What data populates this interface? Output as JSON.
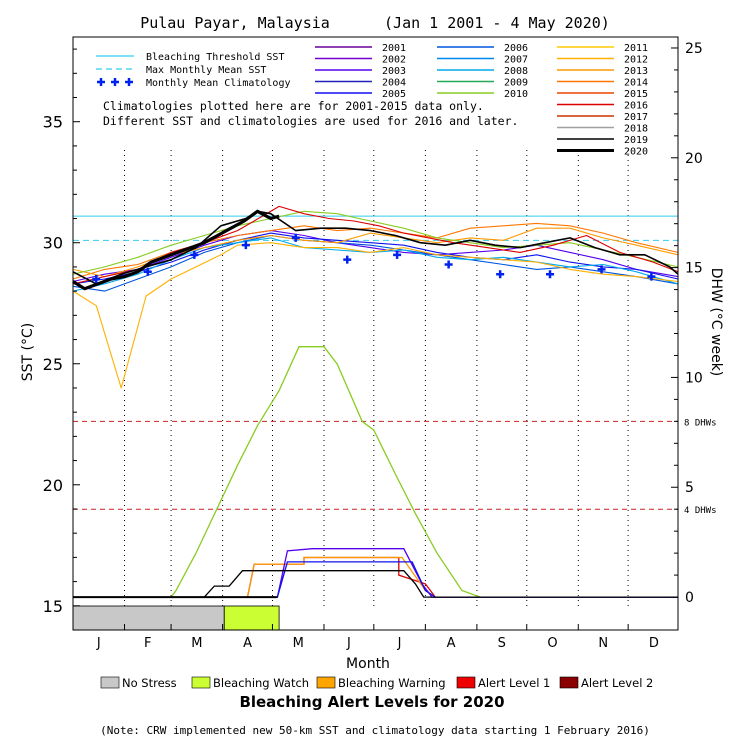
{
  "title": "Pulau Payar, Malaysia      (Jan 1 2001 - 4 May 2020)",
  "xlabel": "Month",
  "ylabel_left": "SST (°C)",
  "ylabel_right": "DHW (°C week)",
  "alert_title": "Bleaching Alert Levels for 2020",
  "note": "(Note: CRW implemented new 50-km SST and climatology data starting 1 February 2016)",
  "climatology_note": [
    "Climatologies plotted here are for 2001-2015 data only.",
    "Different SST and climatologies are used for 2016 and later."
  ],
  "colors": {
    "threshold": "#33ccee",
    "mmm": "#33ccee",
    "climatology": "#0022ee",
    "dhw_ref": "#cc2222",
    "no_stress": "#c8c8c8",
    "watch": "#ccff33",
    "warning": "#ffa500",
    "alert1": "#ee0000",
    "alert2": "#8b0000"
  },
  "legend_main": [
    {
      "label": "Bleaching Threshold SST",
      "style": "solid",
      "color": "#33ccee"
    },
    {
      "label": "Max Monthly Mean SST",
      "style": "dash",
      "color": "#33ccee"
    },
    {
      "label": "Monthly Mean Climatology",
      "style": "plus",
      "color": "#0022ee"
    }
  ],
  "legend_years": [
    {
      "year": "2001",
      "color": "#660099"
    },
    {
      "year": "2002",
      "color": "#7700cc"
    },
    {
      "year": "2003",
      "color": "#5500ee"
    },
    {
      "year": "2004",
      "color": "#2222bb"
    },
    {
      "year": "2005",
      "color": "#1111ee"
    },
    {
      "year": "2006",
      "color": "#0055dd"
    },
    {
      "year": "2007",
      "color": "#0088ee"
    },
    {
      "year": "2008",
      "color": "#00aaee"
    },
    {
      "year": "2009",
      "color": "#22aa55"
    },
    {
      "year": "2010",
      "color": "#88cc22"
    },
    {
      "year": "2011",
      "color": "#ffcc00"
    },
    {
      "year": "2012",
      "color": "#ffb000"
    },
    {
      "year": "2013",
      "color": "#ff9900"
    },
    {
      "year": "2014",
      "color": "#ff7700"
    },
    {
      "year": "2015",
      "color": "#ee4400"
    },
    {
      "year": "2016",
      "color": "#dd0000"
    },
    {
      "year": "2017",
      "color": "#cc3300"
    },
    {
      "year": "2018",
      "color": "#a0a0a0"
    },
    {
      "year": "2019",
      "color": "#000000"
    },
    {
      "year": "2020",
      "color": "#000000"
    }
  ],
  "alert_levels": [
    {
      "label": "No Stress",
      "color": "#c8c8c8"
    },
    {
      "label": "Bleaching Watch",
      "color": "#ccff33"
    },
    {
      "label": "Bleaching Warning",
      "color": "#ffa500"
    },
    {
      "label": "Alert Level 1",
      "color": "#ee0000"
    },
    {
      "label": "Alert Level 2",
      "color": "#8b0000"
    }
  ],
  "chart_data": {
    "type": "line",
    "x_unit": "day of year",
    "months": [
      "J",
      "F",
      "M",
      "A",
      "M",
      "J",
      "J",
      "A",
      "S",
      "O",
      "N",
      "D"
    ],
    "xlim": [
      1,
      365
    ],
    "ylim_left": [
      14,
      38.5
    ],
    "yticks_left": [
      15,
      20,
      25,
      30,
      35
    ],
    "ylim_right": [
      -1.5,
      25.5
    ],
    "yticks_right": [
      0,
      5,
      10,
      15,
      20,
      25
    ],
    "dhw_refs": [
      {
        "label": "4 DHWs",
        "value": 4
      },
      {
        "label": "8 DHWs",
        "value": 8
      }
    ],
    "threshold_sst": 31.1,
    "mmm_sst": 30.1,
    "climatology": {
      "x": [
        15,
        46,
        74,
        105,
        135,
        166,
        196,
        227,
        258,
        288,
        319,
        349
      ],
      "y": [
        28.5,
        28.8,
        29.5,
        29.9,
        30.2,
        29.3,
        29.5,
        29.1,
        28.7,
        28.7,
        28.9,
        28.6
      ]
    },
    "sst_series": [
      {
        "name": "2020",
        "x": [
          1,
          8,
          16,
          24,
          32,
          40,
          48,
          56,
          64,
          72,
          80,
          88,
          96,
          104,
          112,
          120,
          125
        ],
        "y": [
          28.4,
          28.1,
          28.3,
          28.5,
          28.6,
          28.8,
          29.2,
          29.4,
          29.6,
          29.8,
          30.0,
          30.3,
          30.6,
          30.9,
          31.3,
          31.0,
          31.1
        ]
      },
      {
        "name": "2019",
        "x": [
          1,
          15,
          30,
          45,
          60,
          75,
          90,
          105,
          112,
          120,
          135,
          150,
          165,
          180,
          195,
          210,
          225,
          240,
          255,
          270,
          285,
          300,
          315,
          330,
          345,
          360,
          365
        ],
        "y": [
          28.8,
          28.3,
          28.7,
          29.0,
          29.3,
          29.8,
          30.7,
          31.0,
          31.3,
          31.2,
          30.5,
          30.6,
          30.6,
          30.5,
          30.3,
          30.0,
          29.9,
          30.1,
          29.9,
          29.8,
          30.0,
          30.2,
          29.8,
          29.5,
          29.5,
          29.0,
          28.7
        ]
      },
      {
        "name": "2016",
        "x": [
          1,
          20,
          40,
          60,
          80,
          100,
          115,
          125,
          140,
          155,
          170,
          185,
          200,
          215,
          230,
          250,
          270,
          290,
          310,
          330,
          350,
          365
        ],
        "y": [
          28.3,
          28.6,
          28.9,
          29.6,
          30.0,
          30.5,
          31.1,
          31.5,
          31.2,
          31.0,
          30.9,
          30.7,
          30.4,
          30.2,
          30.0,
          29.8,
          29.6,
          29.9,
          30.3,
          29.6,
          29.2,
          28.8
        ]
      },
      {
        "name": "2010",
        "x": [
          1,
          20,
          40,
          60,
          80,
          100,
          120,
          140,
          160,
          180,
          200,
          220,
          240,
          260,
          280,
          300,
          320,
          340,
          365
        ],
        "y": [
          28.7,
          29.0,
          29.4,
          29.9,
          30.3,
          30.7,
          31.0,
          31.3,
          31.2,
          30.9,
          30.6,
          30.2,
          30.0,
          29.8,
          29.9,
          30.0,
          29.7,
          29.4,
          29.0
        ]
      },
      {
        "name": "2013",
        "x": [
          1,
          20,
          40,
          60,
          80,
          100,
          120,
          140,
          160,
          180,
          200,
          220,
          240,
          260,
          280,
          300,
          320,
          340,
          365
        ],
        "y": [
          28.9,
          28.6,
          29.0,
          29.5,
          29.8,
          30.1,
          30.3,
          30.1,
          30.0,
          30.4,
          30.2,
          30.0,
          30.2,
          30.1,
          30.6,
          30.6,
          30.2,
          29.9,
          29.5
        ]
      },
      {
        "name": "2014",
        "x": [
          1,
          20,
          40,
          60,
          80,
          100,
          120,
          140,
          160,
          180,
          200,
          220,
          240,
          260,
          280,
          300,
          320,
          340,
          365
        ],
        "y": [
          28.5,
          28.9,
          29.1,
          29.6,
          30.0,
          30.3,
          30.5,
          30.7,
          30.5,
          30.6,
          30.4,
          30.2,
          30.6,
          30.7,
          30.8,
          30.7,
          30.4,
          30.0,
          29.6
        ]
      },
      {
        "name": "2012",
        "x": [
          1,
          15,
          30,
          45,
          60,
          75,
          90,
          100,
          120,
          140,
          160,
          180,
          200,
          220,
          240,
          260,
          280,
          300,
          320,
          340,
          365
        ],
        "y": [
          28.0,
          27.4,
          24.0,
          27.8,
          28.5,
          29.0,
          29.5,
          29.9,
          30.0,
          29.8,
          29.8,
          29.6,
          29.8,
          29.5,
          29.4,
          29.3,
          29.2,
          28.9,
          28.7,
          28.6,
          28.4
        ]
      },
      {
        "name": "2008",
        "x": [
          1,
          20,
          40,
          60,
          80,
          100,
          120,
          140,
          160,
          180,
          200,
          220,
          240,
          260,
          280,
          300,
          320,
          340,
          365
        ],
        "y": [
          28.0,
          28.3,
          28.7,
          29.3,
          29.8,
          30.0,
          30.2,
          29.8,
          29.7,
          29.6,
          29.7,
          29.4,
          29.3,
          29.4,
          29.2,
          29.0,
          29.1,
          28.8,
          28.3
        ]
      },
      {
        "name": "2006",
        "x": [
          1,
          20,
          40,
          60,
          80,
          100,
          120,
          140,
          160,
          180,
          200,
          220,
          240,
          260,
          280,
          300,
          320,
          340,
          365
        ],
        "y": [
          28.2,
          28.0,
          28.5,
          29.0,
          29.6,
          30.0,
          30.3,
          30.1,
          30.0,
          29.9,
          29.7,
          29.5,
          29.3,
          29.1,
          28.9,
          29.0,
          28.8,
          28.6,
          28.3
        ]
      },
      {
        "name": "2005",
        "x": [
          1,
          20,
          40,
          60,
          80,
          100,
          120,
          140,
          160,
          180,
          200,
          220,
          240,
          260,
          280,
          300,
          320,
          340,
          365
        ],
        "y": [
          28.3,
          28.5,
          28.8,
          29.2,
          29.7,
          30.1,
          30.4,
          30.2,
          30.1,
          30.0,
          29.9,
          29.6,
          29.4,
          29.3,
          29.5,
          29.2,
          29.0,
          28.9,
          28.5
        ]
      },
      {
        "name": "2003",
        "x": [
          1,
          20,
          40,
          60,
          80,
          100,
          120,
          140,
          160,
          180,
          200,
          220,
          240,
          260,
          280,
          300,
          320,
          340,
          365
        ],
        "y": [
          28.4,
          28.7,
          28.9,
          29.4,
          29.9,
          30.3,
          30.5,
          30.3,
          30.0,
          29.8,
          29.6,
          29.5,
          29.6,
          29.7,
          29.9,
          29.6,
          29.3,
          28.9,
          28.6
        ]
      }
    ],
    "dhw_series": [
      {
        "name": "2010",
        "x": [
          1,
          60,
          63,
          75,
          85,
          100,
          112,
          125,
          137,
          152,
          160,
          175,
          182,
          195,
          207,
          220,
          235,
          246,
          365
        ],
        "y": [
          0,
          0,
          0.3,
          2.0,
          3.6,
          6.0,
          7.8,
          9.4,
          11.4,
          11.4,
          10.6,
          8.0,
          7.6,
          5.6,
          3.8,
          2.0,
          0.3,
          0,
          0
        ]
      },
      {
        "name": "2016",
        "x": [
          1,
          106,
          110,
          140,
          140,
          155,
          175,
          197,
          197,
          213,
          219,
          365
        ],
        "y": [
          0,
          0,
          1.5,
          1.5,
          1.8,
          1.8,
          1.8,
          1.8,
          1.0,
          0.6,
          0,
          0
        ]
      },
      {
        "name": "2013",
        "x": [
          1,
          106,
          110,
          140,
          140,
          155,
          175,
          199,
          199,
          213,
          219,
          365
        ],
        "y": [
          0,
          0,
          1.5,
          1.5,
          1.8,
          1.8,
          1.8,
          1.8,
          1.8,
          0.3,
          0,
          0
        ]
      },
      {
        "name": "2003",
        "x": [
          1,
          124,
          130,
          145,
          160,
          175,
          185,
          195,
          200,
          211,
          217,
          365
        ],
        "y": [
          0,
          0,
          2.1,
          2.2,
          2.2,
          2.2,
          2.2,
          2.2,
          2.2,
          0.6,
          0,
          0
        ]
      },
      {
        "name": "2005",
        "x": [
          1,
          124,
          130,
          160,
          180,
          200,
          205,
          213,
          219,
          365
        ],
        "y": [
          0,
          0,
          1.6,
          1.6,
          1.6,
          1.6,
          1.6,
          0.3,
          0,
          0
        ]
      },
      {
        "name": "2019",
        "x": [
          1,
          80,
          86,
          95,
          103,
          115,
          125,
          155,
          175,
          190,
          200,
          207,
          212,
          365
        ],
        "y": [
          0,
          0,
          0.5,
          0.5,
          1.2,
          1.2,
          1.2,
          1.2,
          1.2,
          1.2,
          1.2,
          0.6,
          0,
          0
        ]
      },
      {
        "name": "2020",
        "x": [
          1,
          124
        ],
        "y": [
          0,
          0
        ]
      }
    ],
    "alert_bar_2020": [
      {
        "level": "No Stress",
        "from": 1,
        "to": 92
      },
      {
        "level": "Bleaching Watch",
        "from": 92,
        "to": 125
      }
    ]
  }
}
